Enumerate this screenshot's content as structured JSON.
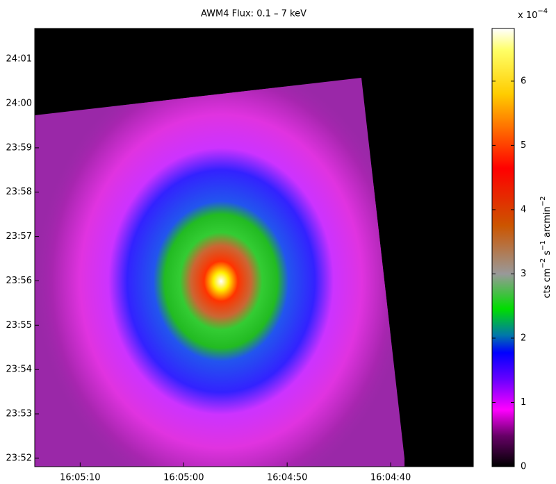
{
  "chart_data": {
    "type": "image",
    "title": "AWM4 Flux: 0.1 – 7 keV",
    "xlim": [
      16.08733,
      16.07556
    ],
    "xticks": [
      {
        "value": 16.086111,
        "label": "16:05:10"
      },
      {
        "value": 16.083333,
        "label": "16:05:00"
      },
      {
        "value": 16.080556,
        "label": "16:04:50"
      },
      {
        "value": 16.077778,
        "label": "16:04:40"
      }
    ],
    "ylim": [
      23.8635,
      24.0282
    ],
    "yticks": [
      {
        "value": 23.866667,
        "label": "23:52"
      },
      {
        "value": 23.883333,
        "label": "23:53"
      },
      {
        "value": 23.9,
        "label": "23:54"
      },
      {
        "value": 23.916667,
        "label": "23:55"
      },
      {
        "value": 23.933333,
        "label": "23:56"
      },
      {
        "value": 23.95,
        "label": "23:57"
      },
      {
        "value": 23.966667,
        "label": "23:58"
      },
      {
        "value": 23.983333,
        "label": "23:59"
      },
      {
        "value": 24.0,
        "label": "24:00"
      },
      {
        "value": 24.016667,
        "label": "24:01"
      }
    ],
    "colorbar": {
      "lim": [
        0,
        6.82
      ],
      "ticks": [
        0,
        1,
        2,
        3,
        4,
        5,
        6
      ],
      "scale": {
        "base": "x 10",
        "exponent": "−4"
      },
      "label": [
        {
          "text": "cts cm",
          "sup": "−2"
        },
        {
          "text": " s",
          "sup": "−1"
        },
        {
          "text": " arcmin",
          "sup": "−2"
        }
      ]
    }
  }
}
